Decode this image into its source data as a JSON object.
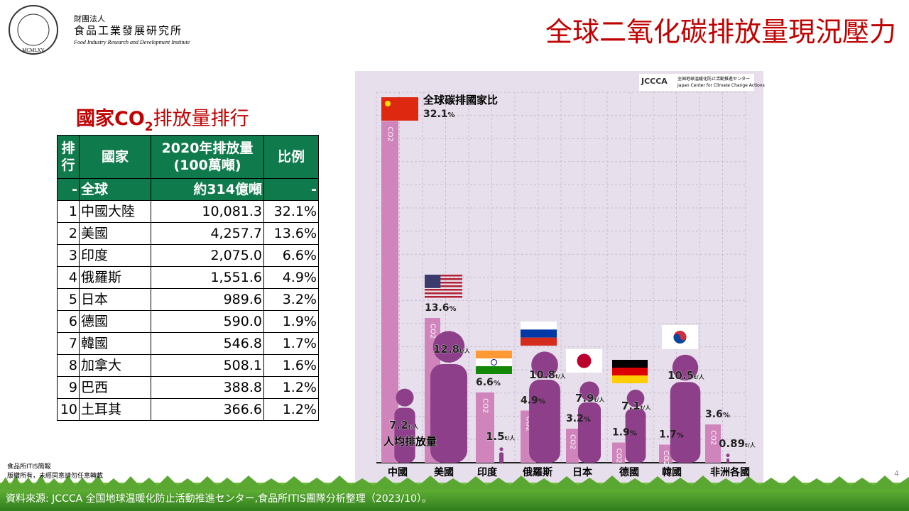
{
  "logo": {
    "seal": "MCMLXV",
    "org_type": "財團法人",
    "org_name": "食品工業發展研究所",
    "org_english": "Food Industry Research and Development Institute"
  },
  "title": "全球二氧化碳排放量現況壓力",
  "table": {
    "caption": [
      "國家CO",
      "2",
      "排放量排行"
    ],
    "header": [
      [
        "排",
        "行"
      ],
      [
        "國家"
      ],
      [
        "2020年排放量",
        "(100萬噸)"
      ],
      [
        "比例"
      ]
    ],
    "total": [
      "-",
      "全球",
      "約314億噸",
      "-"
    ],
    "rows": [
      [
        "1",
        "中國大陸",
        "10,081.3",
        "32.1%"
      ],
      [
        "2",
        "美國",
        "4,257.7",
        "13.6%"
      ],
      [
        "3",
        "印度",
        "2,075.0",
        "6.6%"
      ],
      [
        "4",
        "俄羅斯",
        "1,551.6",
        "4.9%"
      ],
      [
        "5",
        "日本",
        "989.6",
        "3.2%"
      ],
      [
        "6",
        "德國",
        "590.0",
        "1.9%"
      ],
      [
        "7",
        "韓國",
        "546.8",
        "1.7%"
      ],
      [
        "8",
        "加拿大",
        "508.1",
        "1.6%"
      ],
      [
        "9",
        "巴西",
        "388.8",
        "1.2%"
      ],
      [
        "10",
        "土耳其",
        "366.6",
        "1.2%"
      ]
    ]
  },
  "chart": {
    "logo_mark": "JCCCA",
    "logo_title": "全国地球温暖化防止活動推進センター",
    "logo_sub": "Japan Center for Climate Change Actions",
    "share_title": "全球碳排國家比",
    "per_capita_title": "人均排放量",
    "bar_label": "CO2",
    "share_unit": "%",
    "per_capita_unit": "t/人",
    "countries": [
      "中國",
      "美國",
      "印度",
      "俄羅斯",
      "日本",
      "德國",
      "韓國",
      "非洲各國"
    ],
    "shares": [
      32.1,
      13.6,
      6.6,
      4.9,
      3.2,
      1.9,
      1.7,
      3.6
    ],
    "per_capita": [
      7.2,
      12.8,
      1.5,
      10.8,
      7.9,
      7.1,
      10.5,
      0.89
    ]
  },
  "footer": {
    "note": [
      "食品所ITIS簡報",
      "版權所有，未經同意請勿任意轉載"
    ],
    "page": "4",
    "source": "資料來源: JCCCA 全国地球温暖化防止活動推進センター,食品所ITIS團隊分析整理（2023/10）。"
  }
}
